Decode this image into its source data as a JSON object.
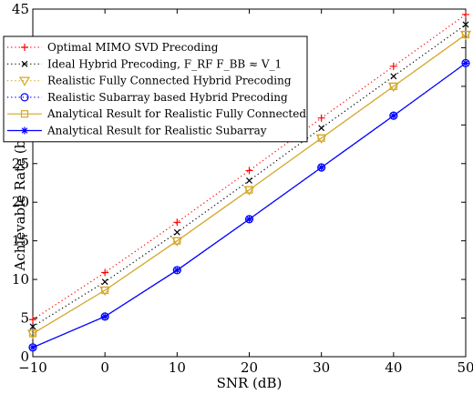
{
  "chart_data": {
    "type": "line",
    "xlabel": "SNR (dB)",
    "ylabel": "Achievable Rate (bps/Hz)",
    "xlim": [
      -10,
      50
    ],
    "ylim": [
      0,
      45
    ],
    "x_ticks": [
      "−10",
      "0",
      "10",
      "20",
      "30",
      "40",
      "50"
    ],
    "y_ticks": [
      "0",
      "5",
      "10",
      "15",
      "20",
      "25",
      "30",
      "35",
      "40",
      "45"
    ],
    "grid": false,
    "legend_position": "top-left",
    "x": [
      -10,
      0,
      10,
      20,
      30,
      40,
      50
    ],
    "series": [
      {
        "name": "Optimal MIMO SVD Precoding",
        "values": [
          4.8,
          10.9,
          17.4,
          24.1,
          30.9,
          37.6,
          44.3
        ],
        "color": "#ff0000",
        "line": "dotted",
        "marker": "plus"
      },
      {
        "name": "Ideal Hybrid Precoding, F_RF F_BB ≈ V_1",
        "values": [
          3.9,
          9.7,
          16.1,
          22.8,
          29.6,
          36.3,
          43.0
        ],
        "color": "#000000",
        "line": "dotted",
        "marker": "x"
      },
      {
        "name": "Realistic Fully Connected Hybrid Precoding",
        "values": [
          3.0,
          8.6,
          15.0,
          21.6,
          28.3,
          35.0,
          41.7
        ],
        "color": "#d4a82a",
        "line": "dotted",
        "marker": "triangle-down"
      },
      {
        "name": "Realistic Subarray based Hybrid Precoding",
        "values": [
          1.2,
          5.2,
          11.2,
          17.8,
          24.5,
          31.2,
          38.0
        ],
        "color": "#0000ff",
        "line": "dotted",
        "marker": "circle"
      },
      {
        "name": "Analytical Result for Realistic Fully Connected",
        "values": [
          3.0,
          8.6,
          15.0,
          21.6,
          28.3,
          35.0,
          41.7
        ],
        "color": "#d4a82a",
        "line": "solid",
        "marker": "square"
      },
      {
        "name": "Analytical Result for Realistic Subarray",
        "values": [
          1.2,
          5.2,
          11.2,
          17.8,
          24.5,
          31.2,
          38.0
        ],
        "color": "#0000ff",
        "line": "solid",
        "marker": "star"
      }
    ]
  }
}
